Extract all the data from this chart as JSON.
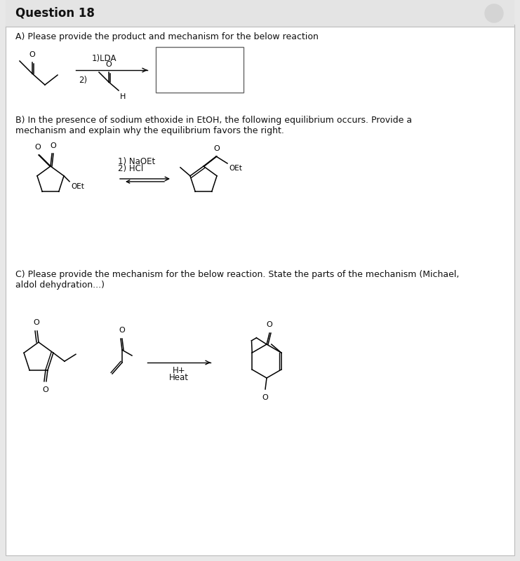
{
  "title": "Question 18",
  "title_fontsize": 12,
  "bg_color": "#e8e8e8",
  "header_bg": "#e0e0e0",
  "content_bg": "#ffffff",
  "section_a_label": "A) Please provide the product and mechanism for the below reaction",
  "section_b_label": "B) In the presence of sodium ethoxide in EtOH, the following equilibrium occurs. Provide a\nmechanism and explain why the equilibrium favors the right.",
  "section_c_label": "C) Please provide the mechanism for the below reaction. State the parts of the mechanism (Michael,\naldol dehydration...)",
  "text_color": "#111111",
  "label_fontsize": 9.0,
  "body_fontsize": 8.5,
  "chem_fontsize": 8.0
}
